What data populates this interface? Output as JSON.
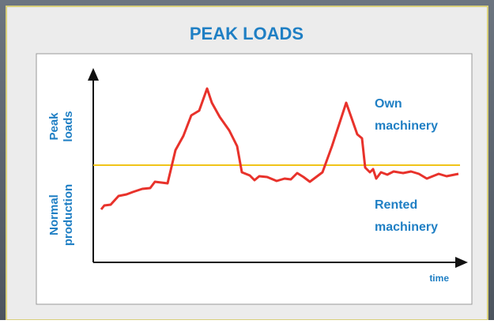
{
  "title": "PEAK LOADS",
  "y_labels": {
    "upper": [
      "Peak",
      "loads"
    ],
    "lower": [
      "Normal",
      "production"
    ]
  },
  "zones": {
    "upper": [
      "Own",
      "machinery"
    ],
    "lower": [
      "Rented",
      "machinery"
    ]
  },
  "x_label": "time"
}
